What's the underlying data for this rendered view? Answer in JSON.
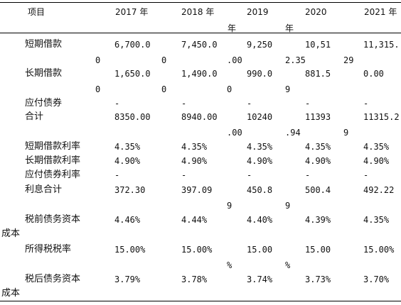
{
  "table": {
    "header": {
      "item": "项目",
      "y2017": "2017 年",
      "y2018": "2018 年",
      "y2019_a": "2019",
      "y2019_b": "年",
      "y2020_a": "2020",
      "y2020_b": "年",
      "y2021": "2021 年"
    },
    "rows": {
      "short_loan": {
        "label": "短期借款",
        "v2017_a": "6,700.0",
        "v2017_b": "0",
        "v2018_a": "7,450.0",
        "v2018_b": "0",
        "v2019_a": "9,250",
        "v2019_b": ".00",
        "v2020_a": "10,51",
        "v2020_b": "2.35",
        "v2021_a": "11,315.",
        "v2021_b": "29"
      },
      "long_loan": {
        "label": "长期借款",
        "v2017_a": "1,650.0",
        "v2017_b": "0",
        "v2018_a": "1,490.0",
        "v2018_b": "0",
        "v2019_a": "990.0",
        "v2019_b": "0",
        "v2020_a": "881.5",
        "v2020_b": "9",
        "v2021": "0.00"
      },
      "bonds": {
        "label": "应付债券",
        "v2017": "-",
        "v2018": "-",
        "v2019": "-",
        "v2020": "-",
        "v2021": "-"
      },
      "total": {
        "label": "合计",
        "v2017": "8350.00",
        "v2018": "8940.00",
        "v2019_a": "10240",
        "v2019_b": ".00",
        "v2020_a": "11393",
        "v2020_b": ".94",
        "v2021_a": "11315.2",
        "v2021_b": "9"
      },
      "short_rate": {
        "label": "短期借款利率",
        "v2017": "4.35%",
        "v2018": "4.35%",
        "v2019": "4.35%",
        "v2020": "4.35%",
        "v2021": "4.35%"
      },
      "long_rate": {
        "label": "长期借款利率",
        "v2017": "4.90%",
        "v2018": "4.90%",
        "v2019": "4.90%",
        "v2020": "4.90%",
        "v2021": "4.90%"
      },
      "bond_rate": {
        "label": "应付债券利率",
        "v2017": "-",
        "v2018": "-",
        "v2019": "-",
        "v2020": "-",
        "v2021": "-"
      },
      "interest_total": {
        "label": "利息合计",
        "v2017": "372.30",
        "v2018_a": "397.09",
        "v2019_a": "450.8",
        "v2019_b": "9",
        "v2020_a": "500.4",
        "v2020_b": "9",
        "v2021": "492.22"
      },
      "pretax_cost": {
        "label_a": "税前债务资本",
        "label_b": "成本",
        "v2017": "4.46%",
        "v2018": "4.44%",
        "v2019": "4.40%",
        "v2020": "4.39%",
        "v2021": "4.35%"
      },
      "tax_rate": {
        "label": "所得税税率",
        "v2017": "15.00%",
        "v2018": "15.00%",
        "v2019_a": "15.00",
        "v2019_b": "%",
        "v2020_a": "15.00",
        "v2020_b": "%",
        "v2021": "15.00%"
      },
      "aftertax_cost": {
        "label_a": "税后债务资本",
        "label_b": "成本",
        "v2017": "3.79%",
        "v2018": "3.78%",
        "v2019": "3.74%",
        "v2020": "3.73%",
        "v2021": "3.70%"
      }
    }
  }
}
